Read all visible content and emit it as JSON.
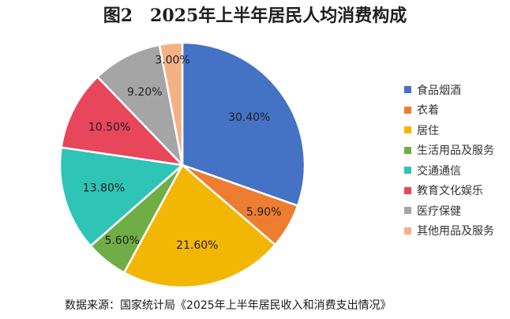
{
  "title": "图2　2025年上半年居民人均消费构成",
  "source": "数据来源：国家统计局《2025年上半年居民收入和消费支出情况》",
  "chart_data": {
    "type": "pie",
    "title": "图2　2025年上半年居民人均消费构成",
    "categories": [
      "食品烟酒",
      "衣着",
      "居住",
      "生活用品及服务",
      "交通通信",
      "教育文化娱乐",
      "医疗保健",
      "其他用品及服务"
    ],
    "values": [
      30.4,
      5.9,
      21.6,
      5.6,
      13.8,
      10.5,
      9.2,
      3.0
    ],
    "labels": [
      "30.40%",
      "5.90%",
      "21.60%",
      "5.60%",
      "13.80%",
      "10.50%",
      "9.20%",
      "3.00%"
    ],
    "colors": [
      "#4472C4",
      "#ED7D31",
      "#F2B705",
      "#70AD47",
      "#2EC4B6",
      "#E8465B",
      "#A5A5A5",
      "#F4B183"
    ],
    "legend_position": "right",
    "start": "12 o'clock, clockwise"
  }
}
